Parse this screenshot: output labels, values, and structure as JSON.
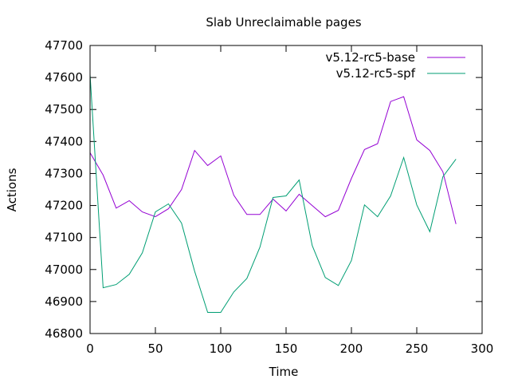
{
  "chart_data": {
    "type": "line",
    "title": "Slab Unreclaimable pages",
    "xlabel": "Time",
    "ylabel": "Actions",
    "xlim": [
      0,
      300
    ],
    "ylim": [
      46800,
      47700
    ],
    "xticks": [
      0,
      50,
      100,
      150,
      200,
      250,
      300
    ],
    "yticks": [
      46800,
      46900,
      47000,
      47100,
      47200,
      47300,
      47400,
      47500,
      47600,
      47700
    ],
    "grid": false,
    "legend_position": "top-right",
    "x": [
      0,
      10,
      20,
      30,
      40,
      50,
      60,
      70,
      80,
      90,
      100,
      110,
      120,
      130,
      140,
      150,
      160,
      170,
      180,
      190,
      200,
      210,
      220,
      230,
      240,
      250,
      260,
      270,
      280
    ],
    "series": [
      {
        "name": "v5.12-rc5-base",
        "color": "#9400d3",
        "values": [
          47365,
          47295,
          47192,
          47215,
          47180,
          47165,
          47190,
          47250,
          47372,
          47325,
          47355,
          47232,
          47172,
          47172,
          47220,
          47183,
          47235,
          47200,
          47165,
          47185,
          47285,
          47375,
          47393,
          47525,
          47540,
          47405,
          47372,
          47305,
          47142
        ]
      },
      {
        "name": "v5.12-rc5-spf",
        "color": "#009e73",
        "values": [
          47610,
          46943,
          46953,
          46985,
          47052,
          47180,
          47205,
          47145,
          46995,
          46866,
          46866,
          46930,
          46972,
          47070,
          47225,
          47230,
          47280,
          47075,
          46975,
          46950,
          47028,
          47202,
          47165,
          47230,
          47350,
          47202,
          47118,
          47290,
          47345
        ]
      }
    ]
  }
}
